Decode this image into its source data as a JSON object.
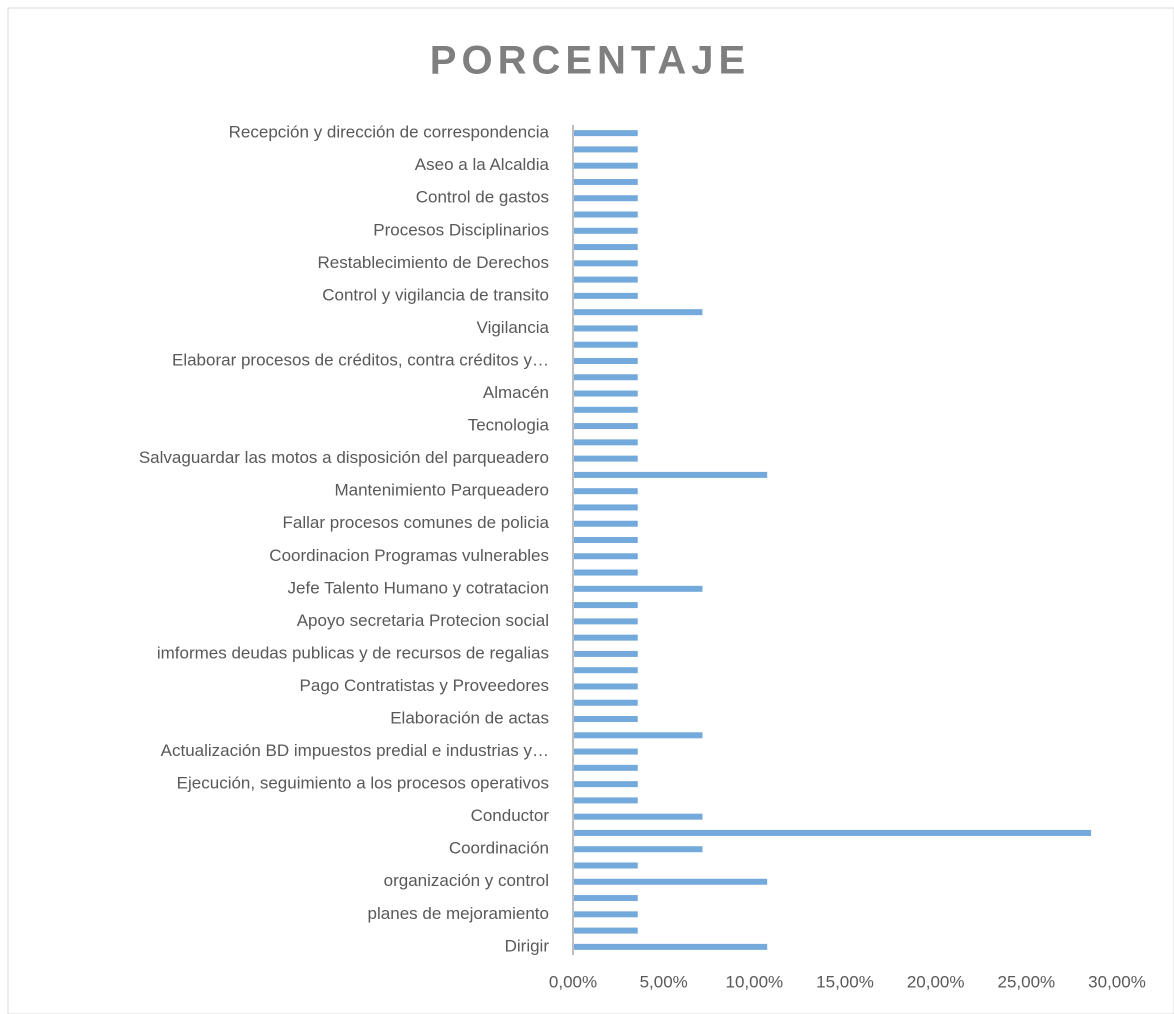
{
  "chart_data": {
    "type": "barh",
    "title": "PORCENTAJE",
    "color": "#5b9bd5",
    "categories": [
      "Recepción y dirección de correspondencia",
      null,
      "Aseo a la Alcaldia",
      null,
      "Control de gastos",
      null,
      "Procesos Disciplinarios",
      null,
      "Restablecimiento de Derechos",
      null,
      "Control y vigilancia de transito",
      null,
      "Vigilancia",
      null,
      "Elaborar procesos de créditos, contra créditos y…",
      null,
      "Almacén",
      null,
      "Tecnologia",
      null,
      "Salvaguardar las motos a disposición del parqueadero",
      null,
      "Mantenimiento Parqueadero",
      null,
      "Fallar procesos comunes de policia",
      null,
      "Coordinacion Programas vulnerables",
      null,
      "Jefe Talento Humano  y cotratacion",
      null,
      "Apoyo secretaria Protecion social",
      null,
      "imformes deudas publicas y de recursos de regalias",
      null,
      "Pago Contratistas y Proveedores",
      null,
      "Elaboración de actas",
      null,
      "Actualización BD impuestos predial e industrias y…",
      null,
      "Ejecución, seguimiento a los procesos operativos",
      null,
      "Conductor",
      null,
      "Coordinación",
      null,
      "organización y control",
      null,
      "planes de mejoramiento",
      null,
      "Dirigir"
    ],
    "values": [
      3.57,
      3.57,
      3.57,
      3.57,
      3.57,
      3.57,
      3.57,
      3.57,
      3.57,
      3.57,
      3.57,
      7.14,
      3.57,
      3.57,
      3.57,
      3.57,
      3.57,
      3.57,
      3.57,
      3.57,
      3.57,
      10.71,
      3.57,
      3.57,
      3.57,
      3.57,
      3.57,
      3.57,
      7.14,
      3.57,
      3.57,
      3.57,
      3.57,
      3.57,
      3.57,
      3.57,
      3.57,
      7.14,
      3.57,
      3.57,
      3.57,
      3.57,
      7.14,
      28.57,
      7.14,
      3.57,
      10.71,
      3.57,
      3.57,
      3.57,
      10.71
    ],
    "xlim": [
      0,
      30
    ],
    "xticks": [
      {
        "value": 0,
        "label": "0,00%"
      },
      {
        "value": 5,
        "label": "5,00%"
      },
      {
        "value": 10,
        "label": "10,00%"
      },
      {
        "value": 15,
        "label": "15,00%"
      },
      {
        "value": 20,
        "label": "20,00%"
      },
      {
        "value": 25,
        "label": "25,00%"
      },
      {
        "value": 30,
        "label": "30,00%"
      }
    ]
  }
}
